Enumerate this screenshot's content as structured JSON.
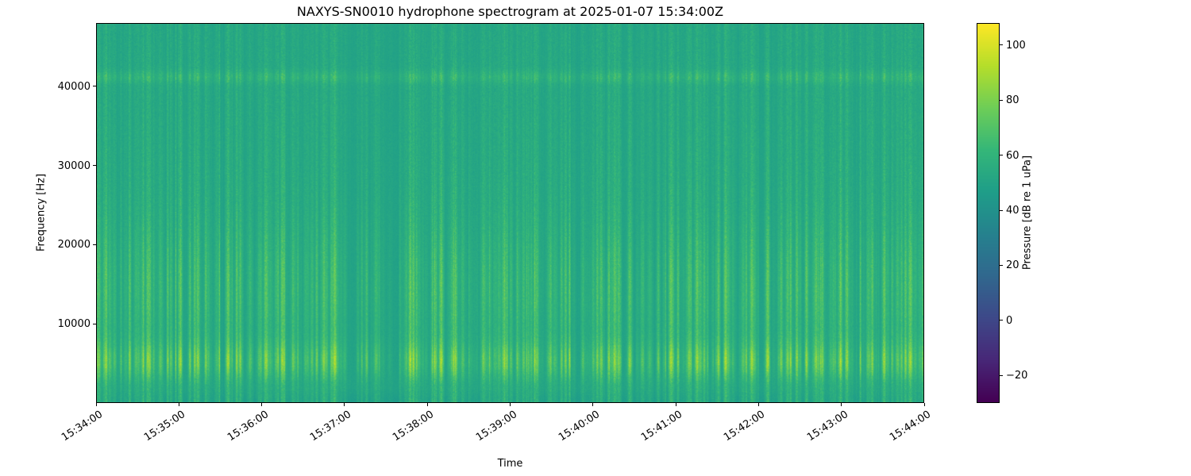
{
  "chart_data": {
    "type": "heatmap",
    "variant": "spectrogram",
    "title": "NAXYS-SN0010 hydrophone spectrogram at 2025-01-07 15:34:00Z",
    "xlabel": "Time",
    "ylabel": "Frequency [Hz]",
    "x_tick_labels": [
      "15:34:00",
      "15:35:00",
      "15:36:00",
      "15:37:00",
      "15:38:00",
      "15:39:00",
      "15:40:00",
      "15:41:00",
      "15:42:00",
      "15:43:00",
      "15:44:00"
    ],
    "y_tick_values": [
      10000,
      20000,
      30000,
      40000
    ],
    "y_tick_labels": [
      "10000",
      "20000",
      "30000",
      "40000"
    ],
    "freq_range_hz": [
      0,
      48000
    ],
    "time_range": [
      "15:34:00",
      "15:44:00"
    ],
    "time_span_seconds": 600,
    "grid": false,
    "legend": null,
    "colormap": "viridis",
    "colorbar": {
      "label": "Pressure [dB re 1 uPa]",
      "tick_values": [
        100,
        80,
        60,
        40,
        20,
        0,
        -20
      ],
      "vmin": -30,
      "vmax": 108
    },
    "content": {
      "background_level_db": 50,
      "transient_clicks": {
        "description": "dense broadband vertical streaks (impulsive clicks) every few seconds across the full 10-minute window",
        "peak_band_hz": [
          3500,
          8000
        ],
        "peak_level_db": 85,
        "secondary_speckle_band_hz": [
          9000,
          22000
        ]
      },
      "tonal_band": {
        "description": "faint persistent horizontal band",
        "frequency_hz": 41300,
        "level_db_above_background": 3
      },
      "low_band": {
        "description": "slightly darker strip at lowest frequencies",
        "below_hz": 1800,
        "level_db_below_background": 4
      },
      "render_seed": 42
    }
  }
}
